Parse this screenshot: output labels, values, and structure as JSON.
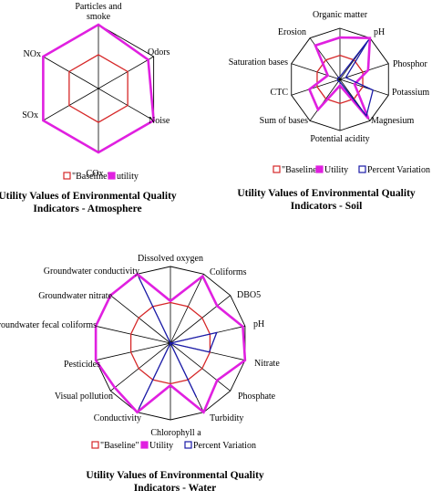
{
  "colors": {
    "baseline": "#d62728",
    "utility": "#e020e0",
    "percent_variation": "#1a1aa8",
    "grid": "#000000"
  },
  "chart_data": [
    {
      "type": "radar",
      "id": "atmosphere",
      "categories": [
        "Particles and smoke",
        "Odors",
        "Noise",
        "COx",
        "SOx",
        "NOx"
      ],
      "range": [
        0,
        1
      ],
      "series": [
        {
          "name": "\"Baseline\"",
          "key": "baseline",
          "values": [
            0.53,
            0.53,
            0.53,
            0.53,
            0.53,
            0.53
          ]
        },
        {
          "name": "utility",
          "key": "utility",
          "values": [
            1.0,
            0.9,
            1.0,
            1.0,
            1.0,
            1.0
          ]
        }
      ],
      "caption_lines": [
        "Utility Values of Environmental Quality",
        "Indicators - Atmosphere"
      ]
    },
    {
      "type": "radar",
      "id": "soil",
      "categories": [
        "Organic matter",
        "pH",
        "Phosphor",
        "Potassium",
        "Magnesium",
        "Potential acidity",
        "Sum of bases",
        "CTC",
        "Saturation bases",
        "Erosion"
      ],
      "range": [
        0,
        1
      ],
      "series": [
        {
          "name": "\"Baseline\"",
          "key": "baseline",
          "values": [
            0.47,
            0.47,
            0.47,
            0.47,
            0.47,
            0.47,
            0.47,
            0.47,
            0.47,
            0.47
          ]
        },
        {
          "name": "Utility",
          "key": "utility",
          "values": [
            0.82,
            1.0,
            0.58,
            0.3,
            0.95,
            0.12,
            0.73,
            0.63,
            0.25,
            0.82
          ]
        },
        {
          "name": "Percent Variation",
          "key": "percent_variation",
          "values": [
            0.05,
            0.95,
            0.12,
            0.68,
            0.88,
            0.05,
            0.05,
            0.05,
            0.05,
            0.05
          ]
        }
      ],
      "caption_lines": [
        "Utility Values of Environmental Quality",
        "Indicators - Soil"
      ]
    },
    {
      "type": "radar",
      "id": "water",
      "categories": [
        "Dissolved oxygen",
        "Coliforms",
        "DBO5",
        "pH",
        "Nitrate",
        "Phosphate",
        "Turbidity",
        "Chlorophyll a",
        "Conductivity",
        "Visual pollution",
        "Pesticides",
        "Groundwater fecal coliforms",
        "Groundwater nitrate",
        "Groundwater conductivity"
      ],
      "range": [
        0,
        1
      ],
      "series": [
        {
          "name": "\"Baseline\"",
          "key": "baseline",
          "values": [
            0.53,
            0.53,
            0.53,
            0.53,
            0.53,
            0.53,
            0.53,
            0.53,
            0.53,
            0.53,
            0.53,
            0.53,
            0.53,
            0.53
          ]
        },
        {
          "name": "Utility",
          "key": "utility",
          "values": [
            0.55,
            0.97,
            0.78,
            0.97,
            1.0,
            0.78,
            1.0,
            0.55,
            1.0,
            0.93,
            1.0,
            1.0,
            1.0,
            1.0
          ]
        },
        {
          "name": "Percent Variation",
          "key": "percent_variation",
          "values": [
            0.0,
            0.0,
            0.0,
            0.62,
            0.52,
            0.0,
            0.78,
            0.0,
            0.95,
            0.0,
            0.0,
            0.0,
            0.0,
            0.95
          ]
        }
      ],
      "caption_lines": [
        "Utility Values of Environmental Quality",
        "Indicators - Water"
      ]
    }
  ]
}
